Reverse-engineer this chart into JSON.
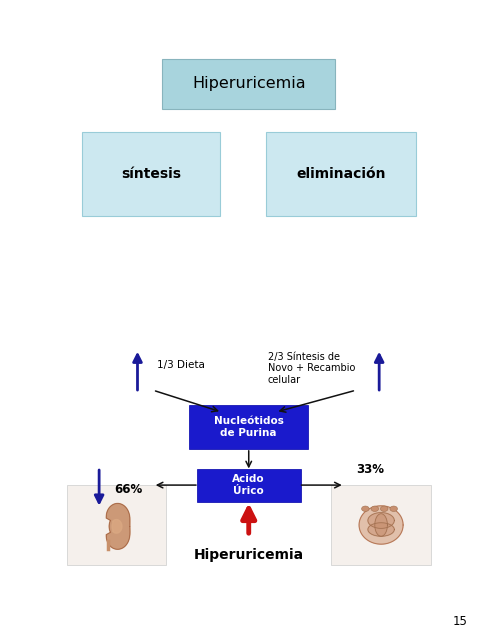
{
  "bg_color": "#ececec",
  "outer_bg": "#ffffff",
  "panel1": {
    "title": "Hiperuricemia",
    "title_bg": "#a8d4dd",
    "title_edge": "#88b4bd",
    "box1_label": "síntesis",
    "box2_label": "eliminación",
    "box_bg": "#cce8f0",
    "box_edge": "#99ccd8"
  },
  "panel2": {
    "label_dieta": "1/3 Dieta",
    "label_sintesis": "2/3 Síntesis de\nNovo + Recambio\ncelular",
    "box_nucleotidos": "Nucleótidos\nde Purina",
    "box_acido": "Acido\nÚrico",
    "label_66": "66%",
    "label_33": "33%",
    "label_hiper": "Hiperuricemia",
    "box_blue_bg": "#1a1acc",
    "box_blue_fg": "#ffffff",
    "arrow_blue": "#1a1a99",
    "arrow_black": "#111111",
    "arrow_red": "#cc1111"
  },
  "page_num": "15"
}
